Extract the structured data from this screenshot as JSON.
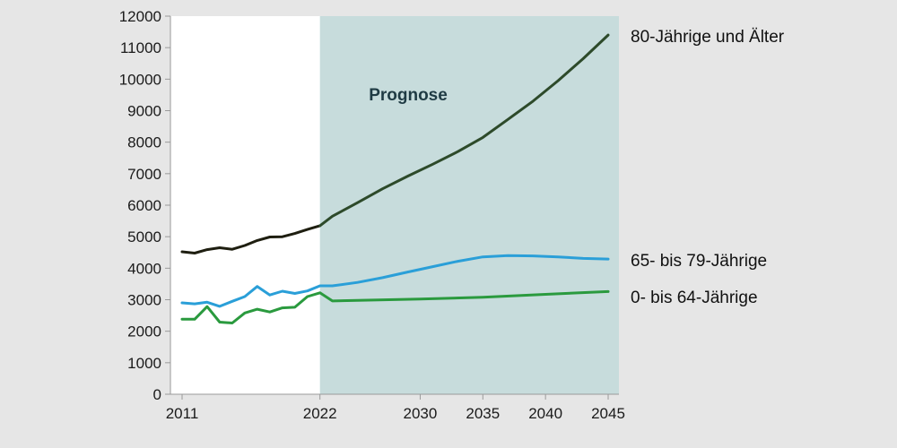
{
  "chart_data": {
    "type": "line",
    "annotation": "Prognose",
    "forecast_start_year": 2022,
    "forecast_shade_color": "#c7dcdc",
    "ylim": [
      0,
      12000
    ],
    "yticks": [
      0,
      1000,
      2000,
      3000,
      4000,
      5000,
      6000,
      7000,
      8000,
      9000,
      10000,
      11000,
      12000
    ],
    "xlim": [
      2011,
      2045
    ],
    "xticks": [
      2011,
      2022,
      2030,
      2035,
      2040,
      2045
    ],
    "series": [
      {
        "name": "80-Jährige und Älter",
        "color": "#2d4a2a",
        "historic_color": "#1e1e10",
        "x": [
          2011,
          2012,
          2013,
          2014,
          2015,
          2016,
          2017,
          2018,
          2019,
          2020,
          2021,
          2022,
          2023,
          2025,
          2027,
          2029,
          2031,
          2033,
          2035,
          2037,
          2039,
          2041,
          2043,
          2045
        ],
        "values": [
          4520,
          4480,
          4590,
          4650,
          4600,
          4720,
          4880,
          4990,
          5000,
          5100,
          5230,
          5350,
          5650,
          6080,
          6520,
          6920,
          7300,
          7700,
          8150,
          8720,
          9300,
          9950,
          10650,
          11400
        ]
      },
      {
        "name": "65- bis 79-Jährige",
        "color": "#2a9fd8",
        "x": [
          2011,
          2012,
          2013,
          2014,
          2015,
          2016,
          2017,
          2018,
          2019,
          2020,
          2021,
          2022,
          2023,
          2025,
          2027,
          2029,
          2031,
          2033,
          2035,
          2037,
          2039,
          2041,
          2043,
          2045
        ],
        "values": [
          2900,
          2870,
          2920,
          2790,
          2950,
          3100,
          3420,
          3150,
          3270,
          3200,
          3280,
          3440,
          3440,
          3550,
          3700,
          3880,
          4050,
          4220,
          4360,
          4400,
          4390,
          4360,
          4310,
          4290
        ]
      },
      {
        "name": "0- bis 64-Jährige",
        "color": "#2a9a3e",
        "x": [
          2011,
          2012,
          2013,
          2014,
          2015,
          2016,
          2017,
          2018,
          2019,
          2020,
          2021,
          2022,
          2023,
          2025,
          2030,
          2035,
          2040,
          2045
        ],
        "values": [
          2380,
          2380,
          2780,
          2290,
          2260,
          2580,
          2700,
          2610,
          2740,
          2760,
          3100,
          3220,
          2960,
          2980,
          3020,
          3080,
          3170,
          3260
        ]
      }
    ]
  }
}
